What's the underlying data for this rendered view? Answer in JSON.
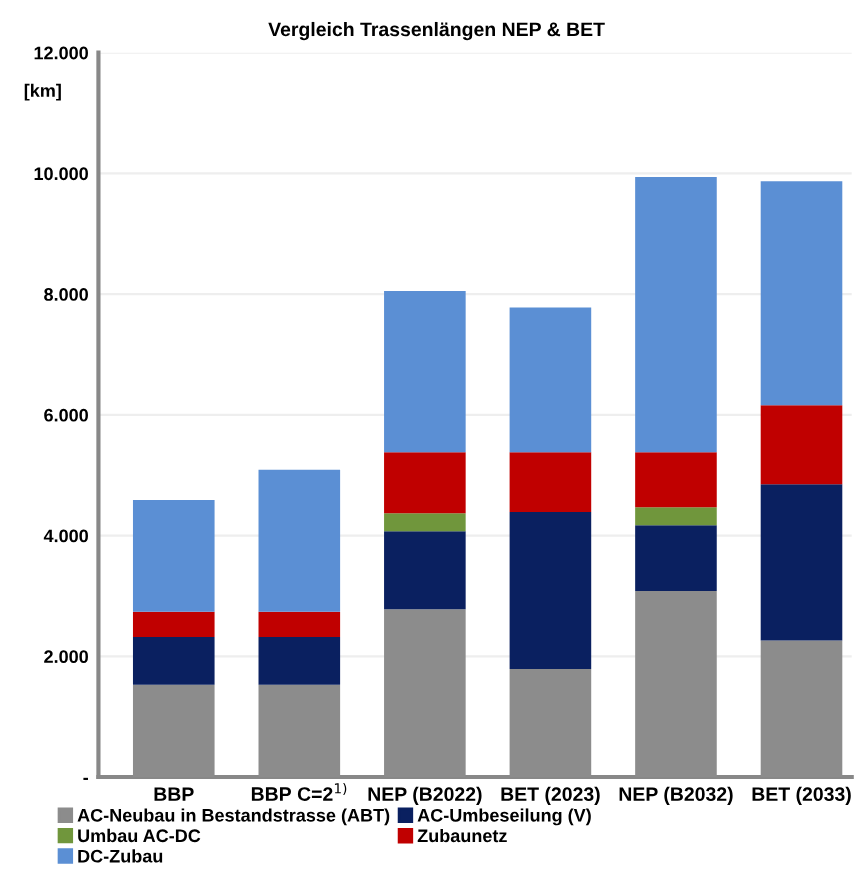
{
  "chart_data": {
    "type": "bar",
    "title": "Vergleich Trassenlängen NEP & BET",
    "ylabel": "[km]",
    "stacked": true,
    "categories": [
      "BBP",
      "BBP C=2$^{1)}$",
      "NEP (B2022)",
      "BET (2023)",
      "NEP (B2032)",
      "BET (2033)"
    ],
    "series": [
      {
        "name": "AC-Neubau in Bestandstrasse (ABT)",
        "color": "#8c8c8c",
        "values": [
          1530,
          1530,
          2780,
          1790,
          3080,
          2260
        ]
      },
      {
        "name": "AC-Umbeseilung (V)",
        "color": "#0a2060",
        "values": [
          790,
          790,
          1290,
          2600,
          1090,
          2590
        ]
      },
      {
        "name": "Umbau AC-DC",
        "color": "#70963c",
        "values": [
          0,
          0,
          300,
          0,
          300,
          0
        ]
      },
      {
        "name": "Zubaunetz",
        "color": "#c00000",
        "values": [
          420,
          420,
          1010,
          990,
          910,
          1310
        ]
      },
      {
        "name": "DC-Zubau",
        "color": "#5b8fd4",
        "values": [
          1850,
          2350,
          2670,
          2400,
          4560,
          3710
        ]
      }
    ],
    "ylim": [
      0,
      12000
    ],
    "yticks": [
      {
        "value": 0,
        "label": "-"
      },
      {
        "value": 2000,
        "label": "2.000"
      },
      {
        "value": 4000,
        "label": "4.000"
      },
      {
        "value": 6000,
        "label": "6.000"
      },
      {
        "value": 8000,
        "label": "8.000"
      },
      {
        "value": 10000,
        "label": "10.000"
      },
      {
        "value": 12000,
        "label": "12.000"
      }
    ],
    "grid": "y",
    "legend": "bottom"
  }
}
